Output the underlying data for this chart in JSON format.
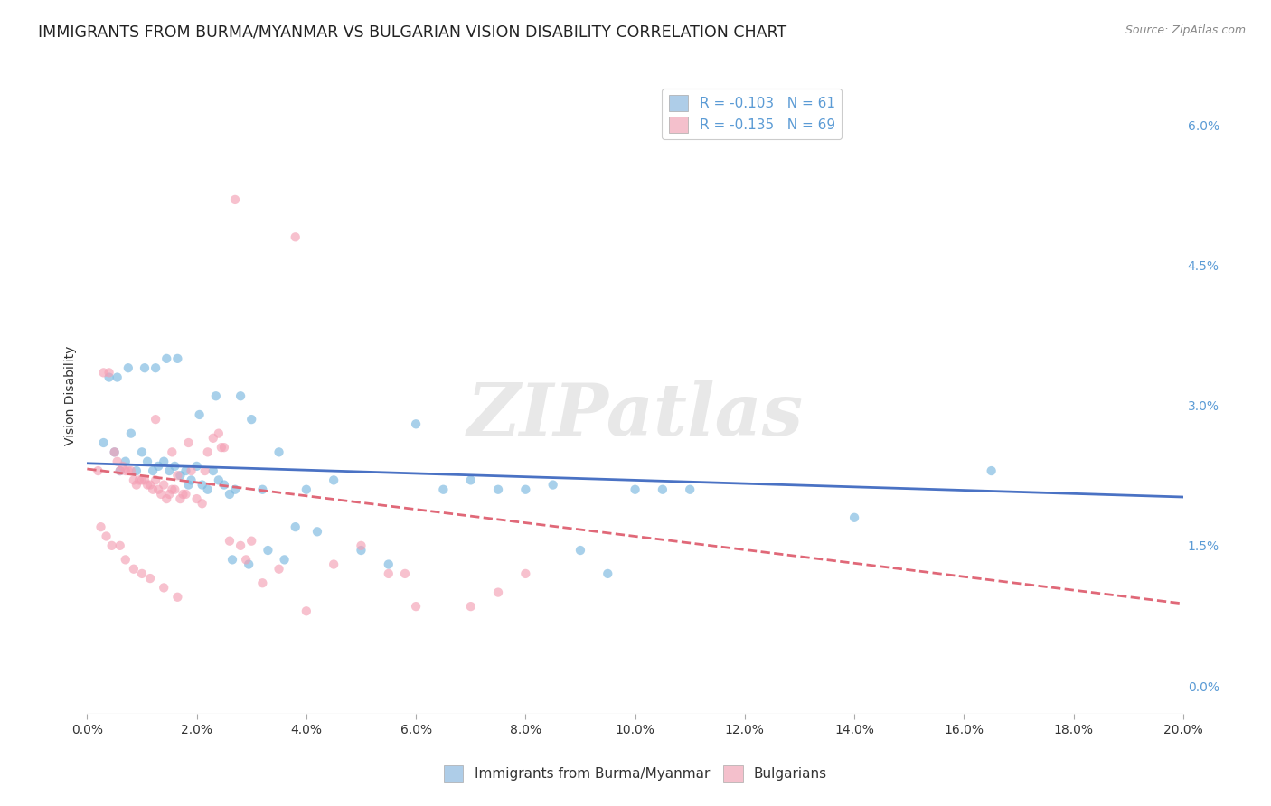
{
  "title": "IMMIGRANTS FROM BURMA/MYANMAR VS BULGARIAN VISION DISABILITY CORRELATION CHART",
  "source": "Source: ZipAtlas.com",
  "ylabel": "Vision Disability",
  "right_yticks": [
    0.0,
    1.5,
    3.0,
    4.5,
    6.0
  ],
  "right_ytick_labels": [
    "0.0%",
    "1.5%",
    "3.0%",
    "4.5%",
    "6.0%"
  ],
  "xmin": 0.0,
  "xmax": 20.0,
  "ymin": -0.3,
  "ymax": 6.5,
  "legend_entry_blue": "R = -0.103   N = 61",
  "legend_entry_pink": "R = -0.135   N = 69",
  "blue_color": "#7ab8e0",
  "pink_color": "#f4a0b5",
  "blue_legend_color": "#aecde8",
  "pink_legend_color": "#f4c0cc",
  "blue_line_color": "#4a72c4",
  "pink_line_color": "#e06878",
  "background_color": "#ffffff",
  "watermark": "ZIPatlas",
  "blue_scatter_x": [
    0.3,
    0.5,
    0.6,
    0.7,
    0.8,
    0.9,
    1.0,
    1.1,
    1.2,
    1.3,
    1.4,
    1.5,
    1.6,
    1.7,
    1.8,
    1.9,
    2.0,
    2.1,
    2.2,
    2.3,
    2.4,
    2.5,
    2.6,
    2.7,
    2.8,
    3.0,
    3.2,
    3.5,
    3.8,
    4.0,
    4.2,
    4.5,
    5.0,
    5.5,
    6.0,
    6.5,
    7.0,
    7.5,
    8.0,
    8.5,
    9.0,
    9.5,
    10.0,
    10.5,
    11.0,
    14.0,
    16.5,
    0.4,
    0.55,
    0.75,
    1.05,
    1.25,
    1.45,
    1.65,
    1.85,
    2.05,
    2.35,
    2.65,
    2.95,
    3.3,
    3.6
  ],
  "blue_scatter_y": [
    2.6,
    2.5,
    2.3,
    2.4,
    2.7,
    2.3,
    2.5,
    2.4,
    2.3,
    2.35,
    2.4,
    2.3,
    2.35,
    2.25,
    2.3,
    2.2,
    2.35,
    2.15,
    2.1,
    2.3,
    2.2,
    2.15,
    2.05,
    2.1,
    3.1,
    2.85,
    2.1,
    2.5,
    1.7,
    2.1,
    1.65,
    2.2,
    1.45,
    1.3,
    2.8,
    2.1,
    2.2,
    2.1,
    2.1,
    2.15,
    1.45,
    1.2,
    2.1,
    2.1,
    2.1,
    1.8,
    2.3,
    3.3,
    3.3,
    3.4,
    3.4,
    3.4,
    3.5,
    3.5,
    2.15,
    2.9,
    3.1,
    1.35,
    1.3,
    1.45,
    1.35
  ],
  "pink_scatter_x": [
    0.2,
    0.3,
    0.4,
    0.5,
    0.55,
    0.6,
    0.65,
    0.7,
    0.75,
    0.8,
    0.85,
    0.9,
    0.95,
    1.0,
    1.05,
    1.1,
    1.15,
    1.2,
    1.25,
    1.3,
    1.35,
    1.4,
    1.45,
    1.5,
    1.55,
    1.6,
    1.65,
    1.7,
    1.75,
    1.8,
    1.9,
    2.0,
    2.1,
    2.2,
    2.3,
    2.4,
    2.5,
    2.6,
    2.8,
    3.0,
    3.2,
    3.5,
    4.0,
    4.5,
    5.0,
    5.5,
    6.0,
    7.0,
    8.0,
    2.15,
    1.25,
    1.85,
    2.45,
    1.55,
    2.9,
    0.25,
    0.35,
    0.45,
    0.6,
    0.7,
    0.85,
    1.0,
    1.15,
    1.4,
    1.65,
    2.7,
    3.8,
    5.8,
    7.5
  ],
  "pink_scatter_y": [
    2.3,
    3.35,
    3.35,
    2.5,
    2.4,
    2.3,
    2.35,
    2.3,
    2.3,
    2.3,
    2.2,
    2.15,
    2.2,
    2.2,
    2.2,
    2.15,
    2.15,
    2.1,
    2.2,
    2.1,
    2.05,
    2.15,
    2.0,
    2.05,
    2.1,
    2.1,
    2.25,
    2.0,
    2.05,
    2.05,
    2.3,
    2.0,
    1.95,
    2.5,
    2.65,
    2.7,
    2.55,
    1.55,
    1.5,
    1.55,
    1.1,
    1.25,
    0.8,
    1.3,
    1.5,
    1.2,
    0.85,
    0.85,
    1.2,
    2.3,
    2.85,
    2.6,
    2.55,
    2.5,
    1.35,
    1.7,
    1.6,
    1.5,
    1.5,
    1.35,
    1.25,
    1.2,
    1.15,
    1.05,
    0.95,
    5.2,
    4.8,
    1.2,
    1.0
  ],
  "blue_trend_x": [
    0.0,
    20.0
  ],
  "blue_trend_y": [
    2.38,
    2.02
  ],
  "pink_trend_x": [
    0.0,
    20.0
  ],
  "pink_trend_y": [
    2.32,
    0.88
  ],
  "grid_color": "#cccccc",
  "title_fontsize": 12.5,
  "axis_label_fontsize": 10,
  "tick_fontsize": 10,
  "legend_fontsize": 11,
  "scatter_size": 55,
  "scatter_alpha": 0.65,
  "bottom_legend_label_blue": "Immigrants from Burma/Myanmar",
  "bottom_legend_label_pink": "Bulgarians"
}
